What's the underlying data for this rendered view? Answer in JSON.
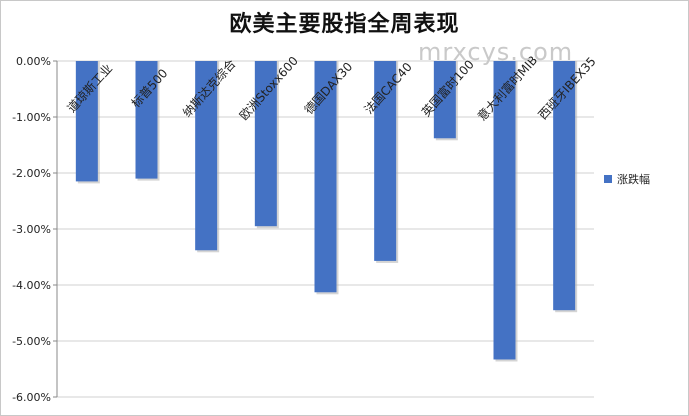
{
  "chart_data": {
    "type": "bar",
    "title": "欧美主要股指全周表现",
    "categories": [
      "道琼斯工业",
      "标普500",
      "纳斯达克综合",
      "欧洲Stoxx600",
      "德国DAX30",
      "法国CAC40",
      "英国富时100",
      "意大利富时MIB",
      "西班牙IBEX35"
    ],
    "series": [
      {
        "name": "涨跌幅",
        "values": [
          -2.15,
          -2.1,
          -3.38,
          -2.95,
          -4.13,
          -3.57,
          -1.38,
          -5.33,
          -4.45
        ]
      }
    ],
    "ylim": [
      -6,
      0
    ],
    "yticks": [
      "0.00%",
      "-1.00%",
      "-2.00%",
      "-3.00%",
      "-4.00%",
      "-5.00%",
      "-6.00%"
    ],
    "xlabel": "",
    "ylabel": "",
    "grid": true,
    "legend_position": "right",
    "bar_color": "#4472C4"
  },
  "watermark": "mrxcys.com"
}
